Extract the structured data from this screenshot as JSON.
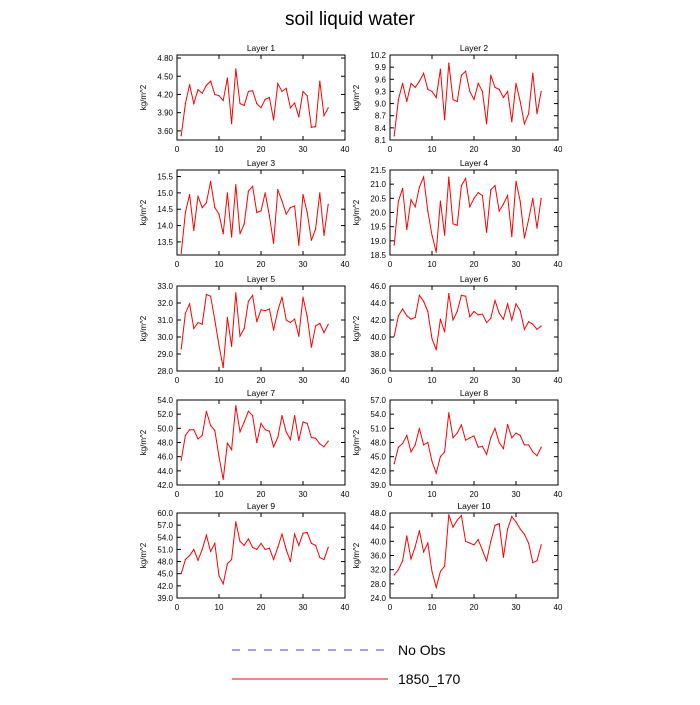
{
  "figure": {
    "title": "soil liquid water"
  },
  "legend": {
    "entries": [
      {
        "label": "No Obs",
        "color": "#3b4cc0",
        "style": "dashed"
      },
      {
        "label": "1850_170",
        "color": "#ff0000",
        "style": "solid"
      }
    ]
  },
  "chart_data": [
    {
      "type": "line",
      "title": "Layer 1",
      "ylabel": "kg/m^2",
      "xlabel": "",
      "xlim": [
        0,
        40
      ],
      "ylim": [
        3.45,
        4.85
      ],
      "xticks": [
        0,
        10,
        20,
        30,
        40
      ],
      "yticks": [
        3.6,
        3.9,
        4.2,
        4.5,
        4.8
      ],
      "ytick_decimals": 2,
      "series": [
        {
          "color": "#ff0000",
          "x": [
            1,
            2,
            3,
            4,
            5,
            6,
            7,
            8,
            9,
            10,
            11,
            12,
            13,
            14,
            15,
            16,
            17,
            18,
            19,
            20,
            21,
            22,
            23,
            24,
            25,
            26,
            27,
            28,
            29,
            30,
            31,
            32,
            33,
            34,
            35,
            36
          ],
          "y": [
            3.52,
            4.05,
            4.36,
            4.05,
            4.28,
            4.22,
            4.35,
            4.42,
            4.2,
            4.18,
            4.1,
            4.47,
            3.72,
            4.62,
            4.05,
            4.02,
            4.25,
            4.26,
            4.05,
            3.98,
            4.12,
            4.15,
            3.78,
            4.38,
            4.25,
            4.3,
            3.98,
            4.06,
            3.83,
            4.25,
            4.18,
            3.66,
            3.67,
            4.42,
            3.85,
            3.98
          ]
        }
      ]
    },
    {
      "type": "line",
      "title": "Layer 2",
      "ylabel": "kg/m^2",
      "xlabel": "",
      "xlim": [
        0,
        40
      ],
      "ylim": [
        8.1,
        10.2
      ],
      "xticks": [
        0,
        10,
        20,
        30,
        40
      ],
      "yticks": [
        8.1,
        8.4,
        8.7,
        9.0,
        9.3,
        9.6,
        9.9,
        10.2
      ],
      "ytick_decimals": 1,
      "series": [
        {
          "color": "#ff0000",
          "x": [
            1,
            2,
            3,
            4,
            5,
            6,
            7,
            8,
            9,
            10,
            11,
            12,
            13,
            14,
            15,
            16,
            17,
            18,
            19,
            20,
            21,
            22,
            23,
            24,
            25,
            26,
            27,
            28,
            29,
            30,
            31,
            32,
            33,
            34,
            35,
            36
          ],
          "y": [
            8.2,
            9.1,
            9.5,
            9.05,
            9.5,
            9.4,
            9.55,
            9.75,
            9.35,
            9.3,
            9.15,
            9.85,
            8.6,
            10.0,
            9.1,
            9.05,
            9.7,
            9.8,
            9.3,
            9.1,
            9.5,
            9.3,
            8.5,
            9.7,
            9.4,
            9.35,
            9.15,
            9.3,
            8.55,
            9.5,
            9.05,
            8.5,
            8.75,
            9.75,
            8.75,
            9.3
          ]
        }
      ]
    },
    {
      "type": "line",
      "title": "Layer 3",
      "ylabel": "kg/m^2",
      "xlabel": "",
      "xlim": [
        0,
        40
      ],
      "ylim": [
        13.1,
        15.7
      ],
      "xticks": [
        0,
        10,
        20,
        30,
        40
      ],
      "yticks": [
        13.5,
        14.0,
        14.5,
        15.0,
        15.5
      ],
      "ytick_decimals": 1,
      "series": [
        {
          "color": "#ff0000",
          "x": [
            1,
            2,
            3,
            4,
            5,
            6,
            7,
            8,
            9,
            10,
            11,
            12,
            13,
            14,
            15,
            16,
            17,
            18,
            19,
            20,
            21,
            22,
            23,
            24,
            25,
            26,
            27,
            28,
            29,
            30,
            31,
            32,
            33,
            34,
            35,
            36
          ],
          "y": [
            13.15,
            14.4,
            14.95,
            13.85,
            14.9,
            14.55,
            14.7,
            15.35,
            14.55,
            14.35,
            13.75,
            15.0,
            13.65,
            15.25,
            13.75,
            14.05,
            15.05,
            15.2,
            14.4,
            14.45,
            15.0,
            14.3,
            13.45,
            15.1,
            14.75,
            14.35,
            14.55,
            14.6,
            13.4,
            14.95,
            14.4,
            13.55,
            13.9,
            15.0,
            13.7,
            14.65
          ]
        }
      ]
    },
    {
      "type": "line",
      "title": "Layer 4",
      "ylabel": "kg/m^2",
      "xlabel": "",
      "xlim": [
        0,
        40
      ],
      "ylim": [
        18.5,
        21.5
      ],
      "xticks": [
        0,
        10,
        20,
        30,
        40
      ],
      "yticks": [
        18.5,
        19.0,
        19.5,
        20.0,
        20.5,
        21.0,
        21.5
      ],
      "ytick_decimals": 1,
      "series": [
        {
          "color": "#ff0000",
          "x": [
            1,
            2,
            3,
            4,
            5,
            6,
            7,
            8,
            9,
            10,
            11,
            12,
            13,
            14,
            15,
            16,
            17,
            18,
            19,
            20,
            21,
            22,
            23,
            24,
            25,
            26,
            27,
            28,
            29,
            30,
            31,
            32,
            33,
            34,
            35,
            36
          ],
          "y": [
            18.85,
            20.4,
            20.85,
            19.4,
            20.45,
            20.2,
            20.9,
            21.25,
            20.05,
            19.2,
            18.6,
            20.4,
            19.2,
            21.25,
            19.6,
            19.55,
            20.95,
            21.2,
            20.2,
            20.5,
            20.7,
            20.6,
            19.3,
            20.8,
            20.95,
            20.05,
            20.3,
            20.6,
            19.15,
            21.1,
            20.4,
            19.1,
            19.75,
            20.5,
            19.45,
            20.5
          ]
        }
      ]
    },
    {
      "type": "line",
      "title": "Layer 5",
      "ylabel": "kg/m^2",
      "xlabel": "",
      "xlim": [
        0,
        40
      ],
      "ylim": [
        28.0,
        33.0
      ],
      "xticks": [
        0,
        10,
        20,
        30,
        40
      ],
      "yticks": [
        28.0,
        29.0,
        30.0,
        31.0,
        32.0,
        33.0
      ],
      "ytick_decimals": 1,
      "series": [
        {
          "color": "#ff0000",
          "x": [
            1,
            2,
            3,
            4,
            5,
            6,
            7,
            8,
            9,
            10,
            11,
            12,
            13,
            14,
            15,
            16,
            17,
            18,
            19,
            20,
            21,
            22,
            23,
            24,
            25,
            26,
            27,
            28,
            29,
            30,
            31,
            32,
            33,
            34,
            35,
            36
          ],
          "y": [
            29.3,
            31.4,
            31.95,
            30.5,
            30.85,
            30.75,
            32.5,
            32.4,
            31.0,
            29.5,
            28.2,
            31.15,
            29.45,
            32.6,
            30.05,
            30.5,
            32.1,
            32.45,
            30.9,
            31.6,
            31.55,
            31.65,
            30.4,
            31.55,
            32.35,
            31.0,
            30.85,
            31.05,
            30.05,
            32.35,
            31.2,
            29.4,
            30.65,
            30.8,
            30.25,
            30.75
          ]
        }
      ]
    },
    {
      "type": "line",
      "title": "Layer 6",
      "ylabel": "kg/m^2",
      "xlabel": "",
      "xlim": [
        0,
        40
      ],
      "ylim": [
        36.0,
        46.0
      ],
      "xticks": [
        0,
        10,
        20,
        30,
        40
      ],
      "yticks": [
        36.0,
        38.0,
        40.0,
        42.0,
        44.0,
        46.0
      ],
      "ytick_decimals": 1,
      "series": [
        {
          "color": "#ff0000",
          "x": [
            1,
            2,
            3,
            4,
            5,
            6,
            7,
            8,
            9,
            10,
            11,
            12,
            13,
            14,
            15,
            16,
            17,
            18,
            19,
            20,
            21,
            22,
            23,
            24,
            25,
            26,
            27,
            28,
            29,
            30,
            31,
            32,
            33,
            34,
            35,
            36
          ],
          "y": [
            40.1,
            42.5,
            43.3,
            42.5,
            42.1,
            42.3,
            44.9,
            44.2,
            43.0,
            39.8,
            38.5,
            42.1,
            40.6,
            45.1,
            42.0,
            43.0,
            44.9,
            44.8,
            42.4,
            43.0,
            42.6,
            42.7,
            41.7,
            42.2,
            44.3,
            42.8,
            42.1,
            43.9,
            42.0,
            43.9,
            43.1,
            40.9,
            41.8,
            41.5,
            40.9,
            41.3
          ]
        }
      ]
    },
    {
      "type": "line",
      "title": "Layer 7",
      "ylabel": "kg/m^2",
      "xlabel": "",
      "xlim": [
        0,
        40
      ],
      "ylim": [
        42.0,
        54.0
      ],
      "xticks": [
        0,
        10,
        20,
        30,
        40
      ],
      "yticks": [
        42.0,
        44.0,
        46.0,
        48.0,
        50.0,
        52.0,
        54.0
      ],
      "ytick_decimals": 1,
      "series": [
        {
          "color": "#ff0000",
          "x": [
            1,
            2,
            3,
            4,
            5,
            6,
            7,
            8,
            9,
            10,
            11,
            12,
            13,
            14,
            15,
            16,
            17,
            18,
            19,
            20,
            21,
            22,
            23,
            24,
            25,
            26,
            27,
            28,
            29,
            30,
            31,
            32,
            33,
            34,
            35,
            36
          ],
          "y": [
            45.5,
            49.0,
            49.8,
            49.8,
            48.5,
            49.0,
            52.4,
            50.4,
            49.7,
            46.0,
            42.8,
            47.9,
            47.0,
            53.2,
            49.5,
            50.9,
            52.4,
            51.8,
            48.0,
            50.7,
            49.8,
            49.6,
            47.4,
            48.7,
            51.8,
            49.5,
            48.4,
            51.8,
            48.3,
            50.9,
            50.7,
            48.7,
            48.6,
            47.8,
            47.4,
            48.2
          ]
        }
      ]
    },
    {
      "type": "line",
      "title": "Layer 8",
      "ylabel": "kg/m^2",
      "xlabel": "",
      "xlim": [
        0,
        40
      ],
      "ylim": [
        39.0,
        57.0
      ],
      "xticks": [
        0,
        10,
        20,
        30,
        40
      ],
      "yticks": [
        39.0,
        42.0,
        45.0,
        48.0,
        51.0,
        54.0,
        57.0
      ],
      "ytick_decimals": 1,
      "series": [
        {
          "color": "#ff0000",
          "x": [
            1,
            2,
            3,
            4,
            5,
            6,
            7,
            8,
            9,
            10,
            11,
            12,
            13,
            14,
            15,
            16,
            17,
            18,
            19,
            20,
            21,
            22,
            23,
            24,
            25,
            26,
            27,
            28,
            29,
            30,
            31,
            32,
            33,
            34,
            35,
            36
          ],
          "y": [
            43.5,
            47.0,
            47.8,
            49.5,
            46.0,
            47.5,
            51.0,
            47.5,
            48.0,
            44.0,
            41.5,
            45.0,
            46.0,
            54.3,
            49.0,
            50.0,
            51.7,
            48.5,
            49.0,
            49.4,
            47.0,
            47.2,
            45.5,
            49.0,
            51.0,
            48.0,
            46.7,
            51.8,
            49.0,
            50.0,
            49.5,
            47.5,
            47.5,
            46.0,
            45.2,
            47.0
          ]
        }
      ]
    },
    {
      "type": "line",
      "title": "Layer 9",
      "ylabel": "kg/m^2",
      "xlabel": "",
      "xlim": [
        0,
        40
      ],
      "ylim": [
        39.0,
        60.0
      ],
      "xticks": [
        0,
        10,
        20,
        30,
        40
      ],
      "yticks": [
        39.0,
        42.0,
        45.0,
        48.0,
        51.0,
        54.0,
        57.0,
        60.0
      ],
      "ytick_decimals": 1,
      "series": [
        {
          "color": "#ff0000",
          "x": [
            1,
            2,
            3,
            4,
            5,
            6,
            7,
            8,
            9,
            10,
            11,
            12,
            13,
            14,
            15,
            16,
            17,
            18,
            19,
            20,
            21,
            22,
            23,
            24,
            25,
            26,
            27,
            28,
            29,
            30,
            31,
            32,
            33,
            34,
            35,
            36
          ],
          "y": [
            45.0,
            48.5,
            49.5,
            51.0,
            48.3,
            51.0,
            54.5,
            50.5,
            52.5,
            44.5,
            42.5,
            47.5,
            48.5,
            57.8,
            53.0,
            52.0,
            53.6,
            51.5,
            51.0,
            52.5,
            51.0,
            51.3,
            48.5,
            51.5,
            54.8,
            51.0,
            48.0,
            54.8,
            52.0,
            55.0,
            55.2,
            52.5,
            52.0,
            49.0,
            48.5,
            51.5
          ]
        }
      ]
    },
    {
      "type": "line",
      "title": "Layer 10",
      "ylabel": "kg/m^2",
      "xlabel": "",
      "xlim": [
        0,
        40
      ],
      "ylim": [
        24.0,
        48.0
      ],
      "xticks": [
        0,
        10,
        20,
        30,
        40
      ],
      "yticks": [
        24.0,
        28.0,
        32.0,
        36.0,
        40.0,
        44.0,
        48.0
      ],
      "ytick_decimals": 1,
      "series": [
        {
          "color": "#ff0000",
          "x": [
            1,
            2,
            3,
            4,
            5,
            6,
            7,
            8,
            9,
            10,
            11,
            12,
            13,
            14,
            15,
            16,
            17,
            18,
            19,
            20,
            21,
            22,
            23,
            24,
            25,
            26,
            27,
            28,
            29,
            30,
            31,
            32,
            33,
            34,
            35,
            36
          ],
          "y": [
            30.5,
            32.0,
            34.5,
            41.5,
            35.0,
            38.5,
            43.0,
            37.0,
            39.5,
            31.5,
            27.0,
            31.5,
            33.0,
            47.5,
            44.0,
            46.0,
            47.3,
            40.0,
            39.5,
            39.0,
            40.5,
            37.5,
            34.5,
            40.0,
            44.5,
            45.0,
            35.5,
            43.5,
            47.0,
            45.5,
            43.5,
            42.0,
            39.5,
            34.0,
            34.5,
            39.0
          ]
        }
      ]
    }
  ]
}
